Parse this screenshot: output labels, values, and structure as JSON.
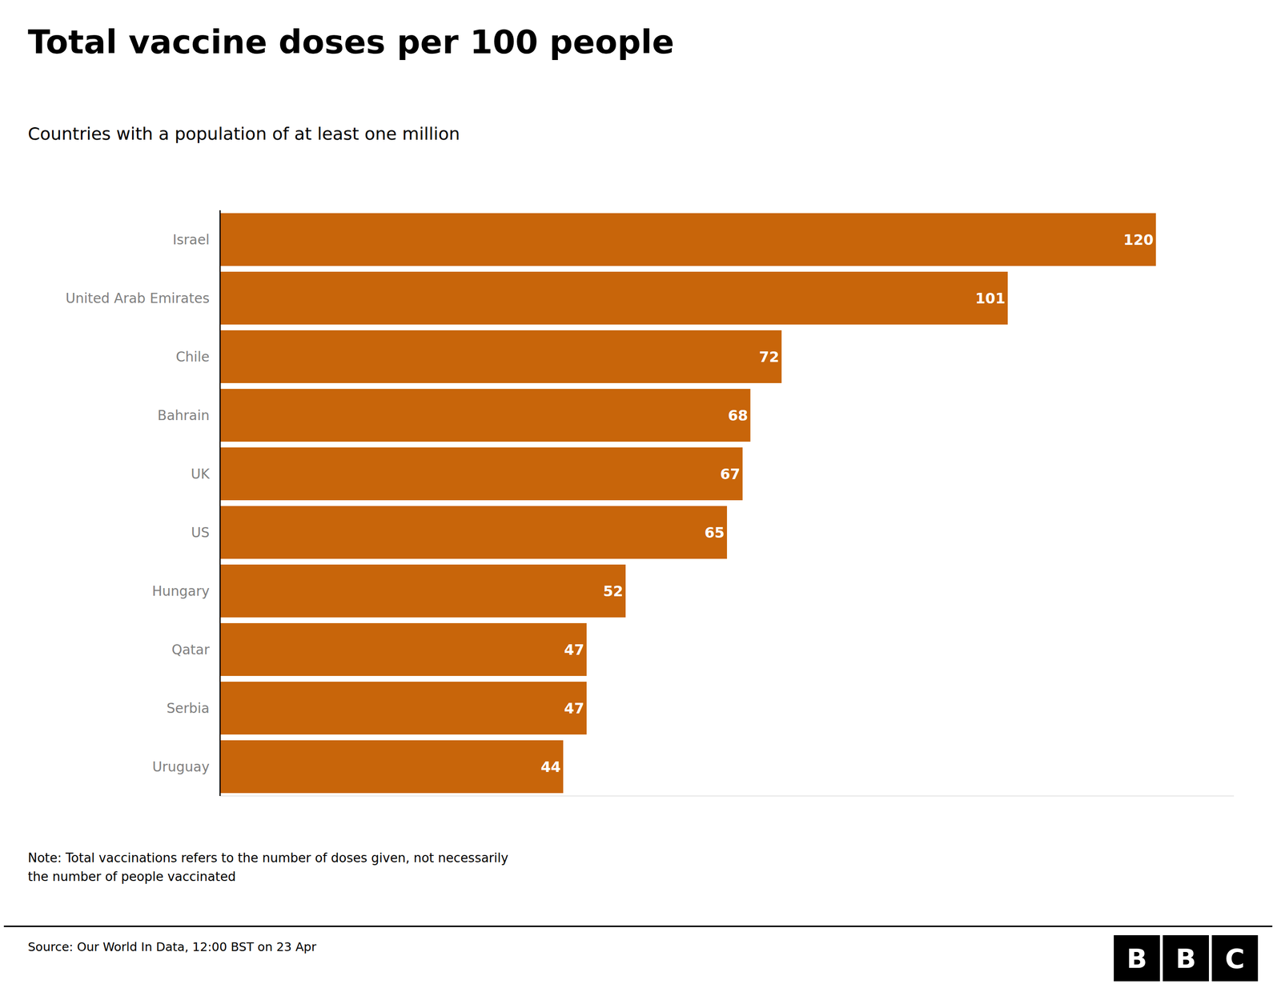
{
  "chart_data": {
    "type": "bar",
    "orientation": "horizontal",
    "title": "Total vaccine doses per 100 people",
    "subtitle": "Countries with a population of at least one million",
    "note": "Note: Total vaccinations refers to the number of doses given, not necessarily\nthe number of people vaccinated",
    "source": "Source: Our World In Data, 12:00 BST on 23 Apr",
    "annotations": [
      "B",
      "B",
      "C"
    ],
    "categories": [
      "Israel",
      "United Arab Emirates",
      "Chile",
      "Bahrain",
      "UK",
      "US",
      "Hungary",
      "Qatar",
      "Serbia",
      "Uruguay"
    ],
    "values": [
      120,
      101,
      72,
      68,
      67,
      65,
      52,
      47,
      47,
      44
    ],
    "color": "#C8650A",
    "xlim": [
      0,
      130
    ],
    "xticks": [],
    "data_labels": true,
    "tick_labels": "y",
    "grid": false
  }
}
